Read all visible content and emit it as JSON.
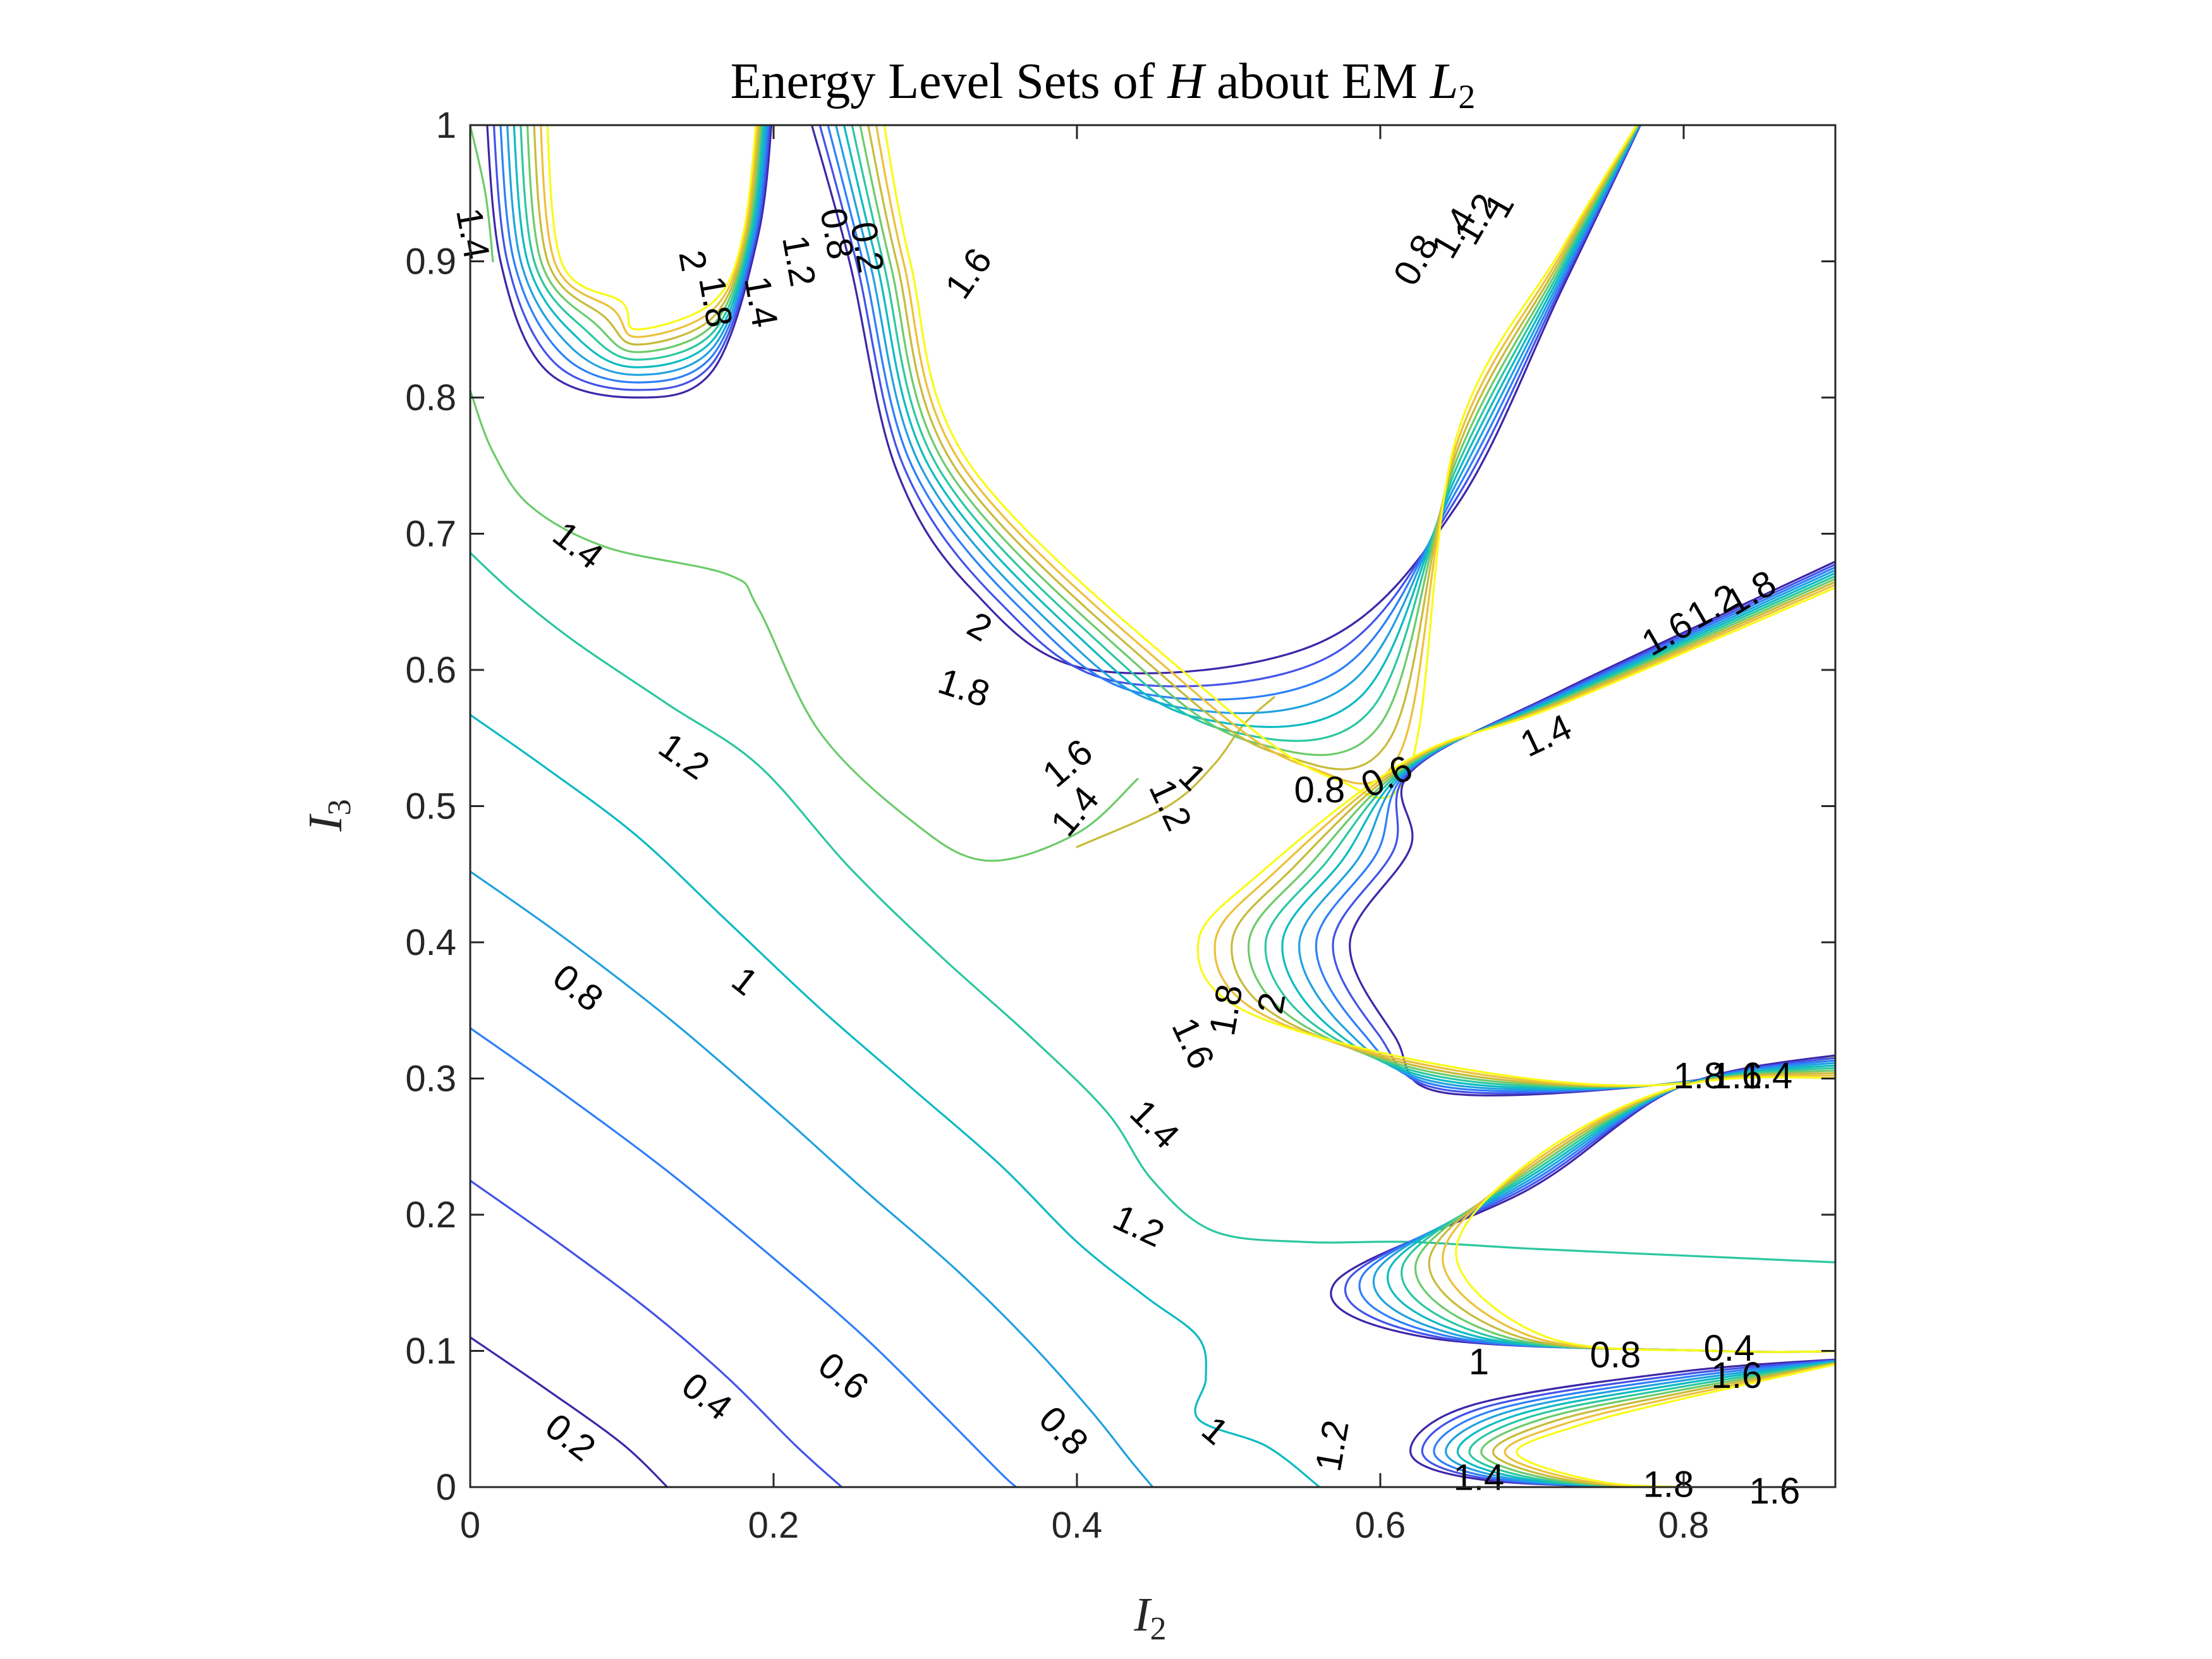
{
  "chart_data": {
    "type": "contour",
    "title": {
      "prefix": "Energy Level Sets of ",
      "symbol": "H",
      "middle": " about EM ",
      "point": "L",
      "point_sub": "2"
    },
    "xlabel": {
      "symbol": "I",
      "sub": "2"
    },
    "ylabel": {
      "symbol": "I",
      "sub": "3"
    },
    "xlim": [
      0,
      0.9
    ],
    "ylim": [
      0,
      1
    ],
    "x_ticks": [
      {
        "value": 0,
        "label": "0"
      },
      {
        "value": 0.2,
        "label": "0.2"
      },
      {
        "value": 0.4,
        "label": "0.4"
      },
      {
        "value": 0.6,
        "label": "0.6"
      },
      {
        "value": 0.8,
        "label": "0.8"
      }
    ],
    "y_ticks": [
      {
        "value": 0,
        "label": "0"
      },
      {
        "value": 0.1,
        "label": "0.1"
      },
      {
        "value": 0.2,
        "label": "0.2"
      },
      {
        "value": 0.3,
        "label": "0.3"
      },
      {
        "value": 0.4,
        "label": "0.4"
      },
      {
        "value": 0.5,
        "label": "0.5"
      },
      {
        "value": 0.6,
        "label": "0.6"
      },
      {
        "value": 0.7,
        "label": "0.7"
      },
      {
        "value": 0.8,
        "label": "0.8"
      },
      {
        "value": 0.9,
        "label": "0.9"
      },
      {
        "value": 1,
        "label": "1"
      }
    ],
    "levels": [
      0.2,
      0.4,
      0.6,
      0.8,
      1,
      1.2,
      1.4,
      1.6,
      1.8,
      2
    ],
    "colormap": {
      "0.2": "#3e26a8",
      "0.4": "#4353e8",
      "0.6": "#2d7ff9",
      "0.8": "#20a1e0",
      "1": "#0cbbc2",
      "1.2": "#2bc7a0",
      "1.4": "#6ccb6b",
      "1.6": "#c7bb3a",
      "1.8": "#edc03a",
      "2": "#f9fb15"
    },
    "contours": [
      {
        "level": 0.2,
        "points": [
          [
            0,
            0.11
          ],
          [
            0.05,
            0.072
          ],
          [
            0.1,
            0.032
          ],
          [
            0.13,
            0
          ]
        ]
      },
      {
        "level": 0.4,
        "points": [
          [
            0,
            0.225
          ],
          [
            0.06,
            0.178
          ],
          [
            0.12,
            0.128
          ],
          [
            0.17,
            0.08
          ],
          [
            0.215,
            0.03
          ],
          [
            0.245,
            0
          ]
        ]
      },
      {
        "level": 0.6,
        "points": [
          [
            0,
            0.337
          ],
          [
            0.06,
            0.29
          ],
          [
            0.13,
            0.232
          ],
          [
            0.2,
            0.168
          ],
          [
            0.26,
            0.11
          ],
          [
            0.31,
            0.055
          ],
          [
            0.35,
            0.01
          ],
          [
            0.36,
            0
          ]
        ]
      },
      {
        "level": 0.8,
        "points": [
          [
            0,
            0.452
          ],
          [
            0.06,
            0.405
          ],
          [
            0.13,
            0.345
          ],
          [
            0.2,
            0.278
          ],
          [
            0.26,
            0.218
          ],
          [
            0.32,
            0.16
          ],
          [
            0.37,
            0.105
          ],
          [
            0.41,
            0.055
          ],
          [
            0.435,
            0.02
          ],
          [
            0.45,
            0
          ]
        ]
      },
      {
        "level": 1,
        "points": [
          [
            0,
            0.567
          ],
          [
            0.05,
            0.528
          ],
          [
            0.11,
            0.478
          ],
          [
            0.17,
            0.415
          ],
          [
            0.23,
            0.352
          ],
          [
            0.29,
            0.294
          ],
          [
            0.35,
            0.236
          ],
          [
            0.4,
            0.18
          ],
          [
            0.445,
            0.14
          ],
          [
            0.48,
            0.11
          ],
          [
            0.485,
            0.08
          ],
          [
            0.48,
            0.05
          ],
          [
            0.525,
            0.03
          ],
          [
            0.56,
            0
          ]
        ]
      },
      {
        "level": 1.2,
        "points": [
          [
            0,
            0.686
          ],
          [
            0.03,
            0.655
          ],
          [
            0.07,
            0.62
          ],
          [
            0.13,
            0.575
          ],
          [
            0.19,
            0.53
          ],
          [
            0.25,
            0.455
          ],
          [
            0.31,
            0.39
          ],
          [
            0.37,
            0.33
          ],
          [
            0.42,
            0.275
          ],
          [
            0.45,
            0.225
          ],
          [
            0.49,
            0.188
          ],
          [
            0.55,
            0.18
          ],
          [
            0.62,
            0.18
          ],
          [
            0.7,
            0.175
          ],
          [
            0.8,
            0.17
          ],
          [
            0.9,
            0.165
          ]
        ]
      },
      {
        "level": 1.4,
        "points": [
          [
            0,
            0.805
          ],
          [
            0.015,
            0.76
          ],
          [
            0.04,
            0.72
          ],
          [
            0.09,
            0.69
          ],
          [
            0.17,
            0.67
          ],
          [
            0.19,
            0.645
          ],
          [
            0.23,
            0.555
          ],
          [
            0.29,
            0.49
          ],
          [
            0.34,
            0.46
          ],
          [
            0.4,
            0.48
          ],
          [
            0.44,
            0.52
          ]
        ]
      },
      {
        "level": 1.4,
        "points": [
          [
            0,
            1
          ],
          [
            0.01,
            0.95
          ],
          [
            0.015,
            0.9
          ]
        ]
      },
      {
        "level": 1.6,
        "points": [
          [
            0.4,
            0.47
          ],
          [
            0.46,
            0.5
          ],
          [
            0.49,
            0.53
          ],
          [
            0.51,
            0.56
          ],
          [
            0.53,
            0.58
          ]
        ]
      }
    ],
    "contour_labels": [
      {
        "text": "0.2",
        "x": 0.065,
        "y": 0.035,
        "angle": 38
      },
      {
        "text": "0.4",
        "x": 0.155,
        "y": 0.065,
        "angle": 38
      },
      {
        "text": "0.6",
        "x": 0.245,
        "y": 0.08,
        "angle": 38
      },
      {
        "text": "0.8",
        "x": 0.39,
        "y": 0.04,
        "angle": 45
      },
      {
        "text": "1",
        "x": 0.49,
        "y": 0.04,
        "angle": 40
      },
      {
        "text": "1.2",
        "x": 0.57,
        "y": 0.03,
        "angle": -80
      },
      {
        "text": "1.4",
        "x": 0.665,
        "y": 0.005,
        "angle": 0
      },
      {
        "text": "1.8",
        "x": 0.79,
        "y": 0.0,
        "angle": 0
      },
      {
        "text": "1.6",
        "x": 0.86,
        "y": -0.005,
        "angle": 0
      },
      {
        "text": "1",
        "x": 0.665,
        "y": 0.09,
        "angle": 0
      },
      {
        "text": "0.8",
        "x": 0.755,
        "y": 0.095,
        "angle": 0
      },
      {
        "text": "0.4",
        "x": 0.83,
        "y": 0.1,
        "angle": 0
      },
      {
        "text": "1.6",
        "x": 0.835,
        "y": 0.08,
        "angle": 0
      },
      {
        "text": "0.8",
        "x": 0.07,
        "y": 0.365,
        "angle": 38
      },
      {
        "text": "1",
        "x": 0.18,
        "y": 0.37,
        "angle": 38
      },
      {
        "text": "1.2",
        "x": 0.44,
        "y": 0.19,
        "angle": 25
      },
      {
        "text": "1.4",
        "x": 0.45,
        "y": 0.265,
        "angle": 45
      },
      {
        "text": "1.6",
        "x": 0.475,
        "y": 0.325,
        "angle": 65
      },
      {
        "text": "1.8",
        "x": 0.5,
        "y": 0.35,
        "angle": -80
      },
      {
        "text": "2",
        "x": 0.53,
        "y": 0.355,
        "angle": -80
      },
      {
        "text": "1.2",
        "x": 0.14,
        "y": 0.535,
        "angle": 35
      },
      {
        "text": "1.4",
        "x": 0.07,
        "y": 0.69,
        "angle": 38
      },
      {
        "text": "1.4",
        "x": 0.0,
        "y": 0.92,
        "angle": 80
      },
      {
        "text": "2",
        "x": 0.335,
        "y": 0.63,
        "angle": 30
      },
      {
        "text": "1.8",
        "x": 0.325,
        "y": 0.585,
        "angle": 18
      },
      {
        "text": "1.6",
        "x": 0.395,
        "y": 0.53,
        "angle": -40
      },
      {
        "text": "1.4",
        "x": 0.4,
        "y": 0.495,
        "angle": -50
      },
      {
        "text": "1",
        "x": 0.475,
        "y": 0.52,
        "angle": 45
      },
      {
        "text": "1.2",
        "x": 0.46,
        "y": 0.5,
        "angle": 65
      },
      {
        "text": "1.6",
        "x": 0.33,
        "y": 0.89,
        "angle": -55
      },
      {
        "text": "0.8",
        "x": 0.56,
        "y": 0.51,
        "angle": 0
      },
      {
        "text": "0.6",
        "x": 0.605,
        "y": 0.52,
        "angle": -25
      },
      {
        "text": "1.4",
        "x": 0.71,
        "y": 0.55,
        "angle": -25
      },
      {
        "text": "1.6",
        "x": 0.79,
        "y": 0.625,
        "angle": -30
      },
      {
        "text": "1.2",
        "x": 0.82,
        "y": 0.645,
        "angle": -30
      },
      {
        "text": "1.8",
        "x": 0.845,
        "y": 0.655,
        "angle": -30
      },
      {
        "text": "2",
        "x": 0.145,
        "y": 0.9,
        "angle": 80
      },
      {
        "text": "1.8",
        "x": 0.16,
        "y": 0.87,
        "angle": 80
      },
      {
        "text": "1.4",
        "x": 0.19,
        "y": 0.87,
        "angle": 80
      },
      {
        "text": "1.2",
        "x": 0.215,
        "y": 0.9,
        "angle": 80
      },
      {
        "text": "0.8",
        "x": 0.24,
        "y": 0.92,
        "angle": 80
      },
      {
        "text": "0.2",
        "x": 0.26,
        "y": 0.91,
        "angle": 80
      },
      {
        "text": "0.8",
        "x": 0.625,
        "y": 0.9,
        "angle": -60
      },
      {
        "text": "1.4",
        "x": 0.65,
        "y": 0.92,
        "angle": -60
      },
      {
        "text": "1.2",
        "x": 0.665,
        "y": 0.93,
        "angle": -60
      },
      {
        "text": "1",
        "x": 0.68,
        "y": 0.94,
        "angle": -60
      },
      {
        "text": "1.8",
        "x": 0.81,
        "y": 0.3,
        "angle": 0
      },
      {
        "text": "1.6",
        "x": 0.835,
        "y": 0.3,
        "angle": 0
      },
      {
        "text": "1.4",
        "x": 0.855,
        "y": 0.3,
        "angle": 0
      }
    ]
  }
}
